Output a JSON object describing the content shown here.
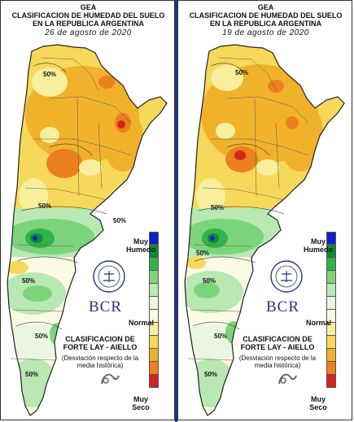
{
  "panels": [
    {
      "title_1": "GEA",
      "title_2": "CLASIFICACION DE HUMEDAD DEL SUELO",
      "title_3": "EN LA REPUBLICA ARGENTINA",
      "date": "26 de agosto de 2020",
      "contour_labels": [
        "50%",
        "50%",
        "50%",
        "50%",
        "50%",
        "50%"
      ]
    },
    {
      "title_1": "GEA",
      "title_2": "CLASIFICACION DE HUMEDAD DEL SUELO",
      "title_3": "EN LA REPUBLICA ARGENTINA",
      "date": "19 de agosto de 2020",
      "contour_labels": [
        "50%",
        "50%",
        "50%",
        "50%",
        "50%",
        "50%"
      ]
    }
  ],
  "legend": {
    "top_label": "Muy Humedo",
    "middle_label": "Normal",
    "bottom_label": "Muy Seco",
    "colors": [
      "#1020c8",
      "#118a3a",
      "#32b24a",
      "#7cd47a",
      "#b9e8b3",
      "#eaf6e3",
      "#fbfbe3",
      "#f8ef9c",
      "#f6d85a",
      "#f0b22a",
      "#ec7f1e",
      "#d8231c"
    ]
  },
  "classification": {
    "line1": "CLASIFICACION DE",
    "line2": "FORTE LAY - AIELLO",
    "note": "(Desviación respecto de la media histórica)"
  },
  "brand": {
    "name": "BCR",
    "seal_icon": "bcr-seal-icon",
    "logo": "GEA-logo-icon"
  }
}
